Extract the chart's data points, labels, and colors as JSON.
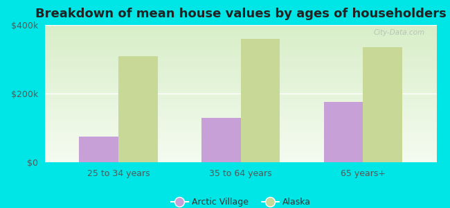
{
  "title": "Breakdown of mean house values by ages of householders",
  "categories": [
    "25 to 34 years",
    "35 to 64 years",
    "65 years+"
  ],
  "arctic_village": [
    75000,
    130000,
    175000
  ],
  "alaska": [
    310000,
    360000,
    335000
  ],
  "arctic_color": "#c8a0d8",
  "alaska_color": "#c8d896",
  "background_color": "#00e5e5",
  "ylim": [
    0,
    400000
  ],
  "yticks": [
    0,
    200000,
    400000
  ],
  "ytick_labels": [
    "$0",
    "$200k",
    "$400k"
  ],
  "legend_labels": [
    "Arctic Village",
    "Alaska"
  ],
  "bar_width": 0.32,
  "title_fontsize": 13,
  "tick_fontsize": 9,
  "legend_fontsize": 9,
  "plot_bg_color_top": "#d8eec8",
  "plot_bg_color_bottom": "#f4fbf0"
}
